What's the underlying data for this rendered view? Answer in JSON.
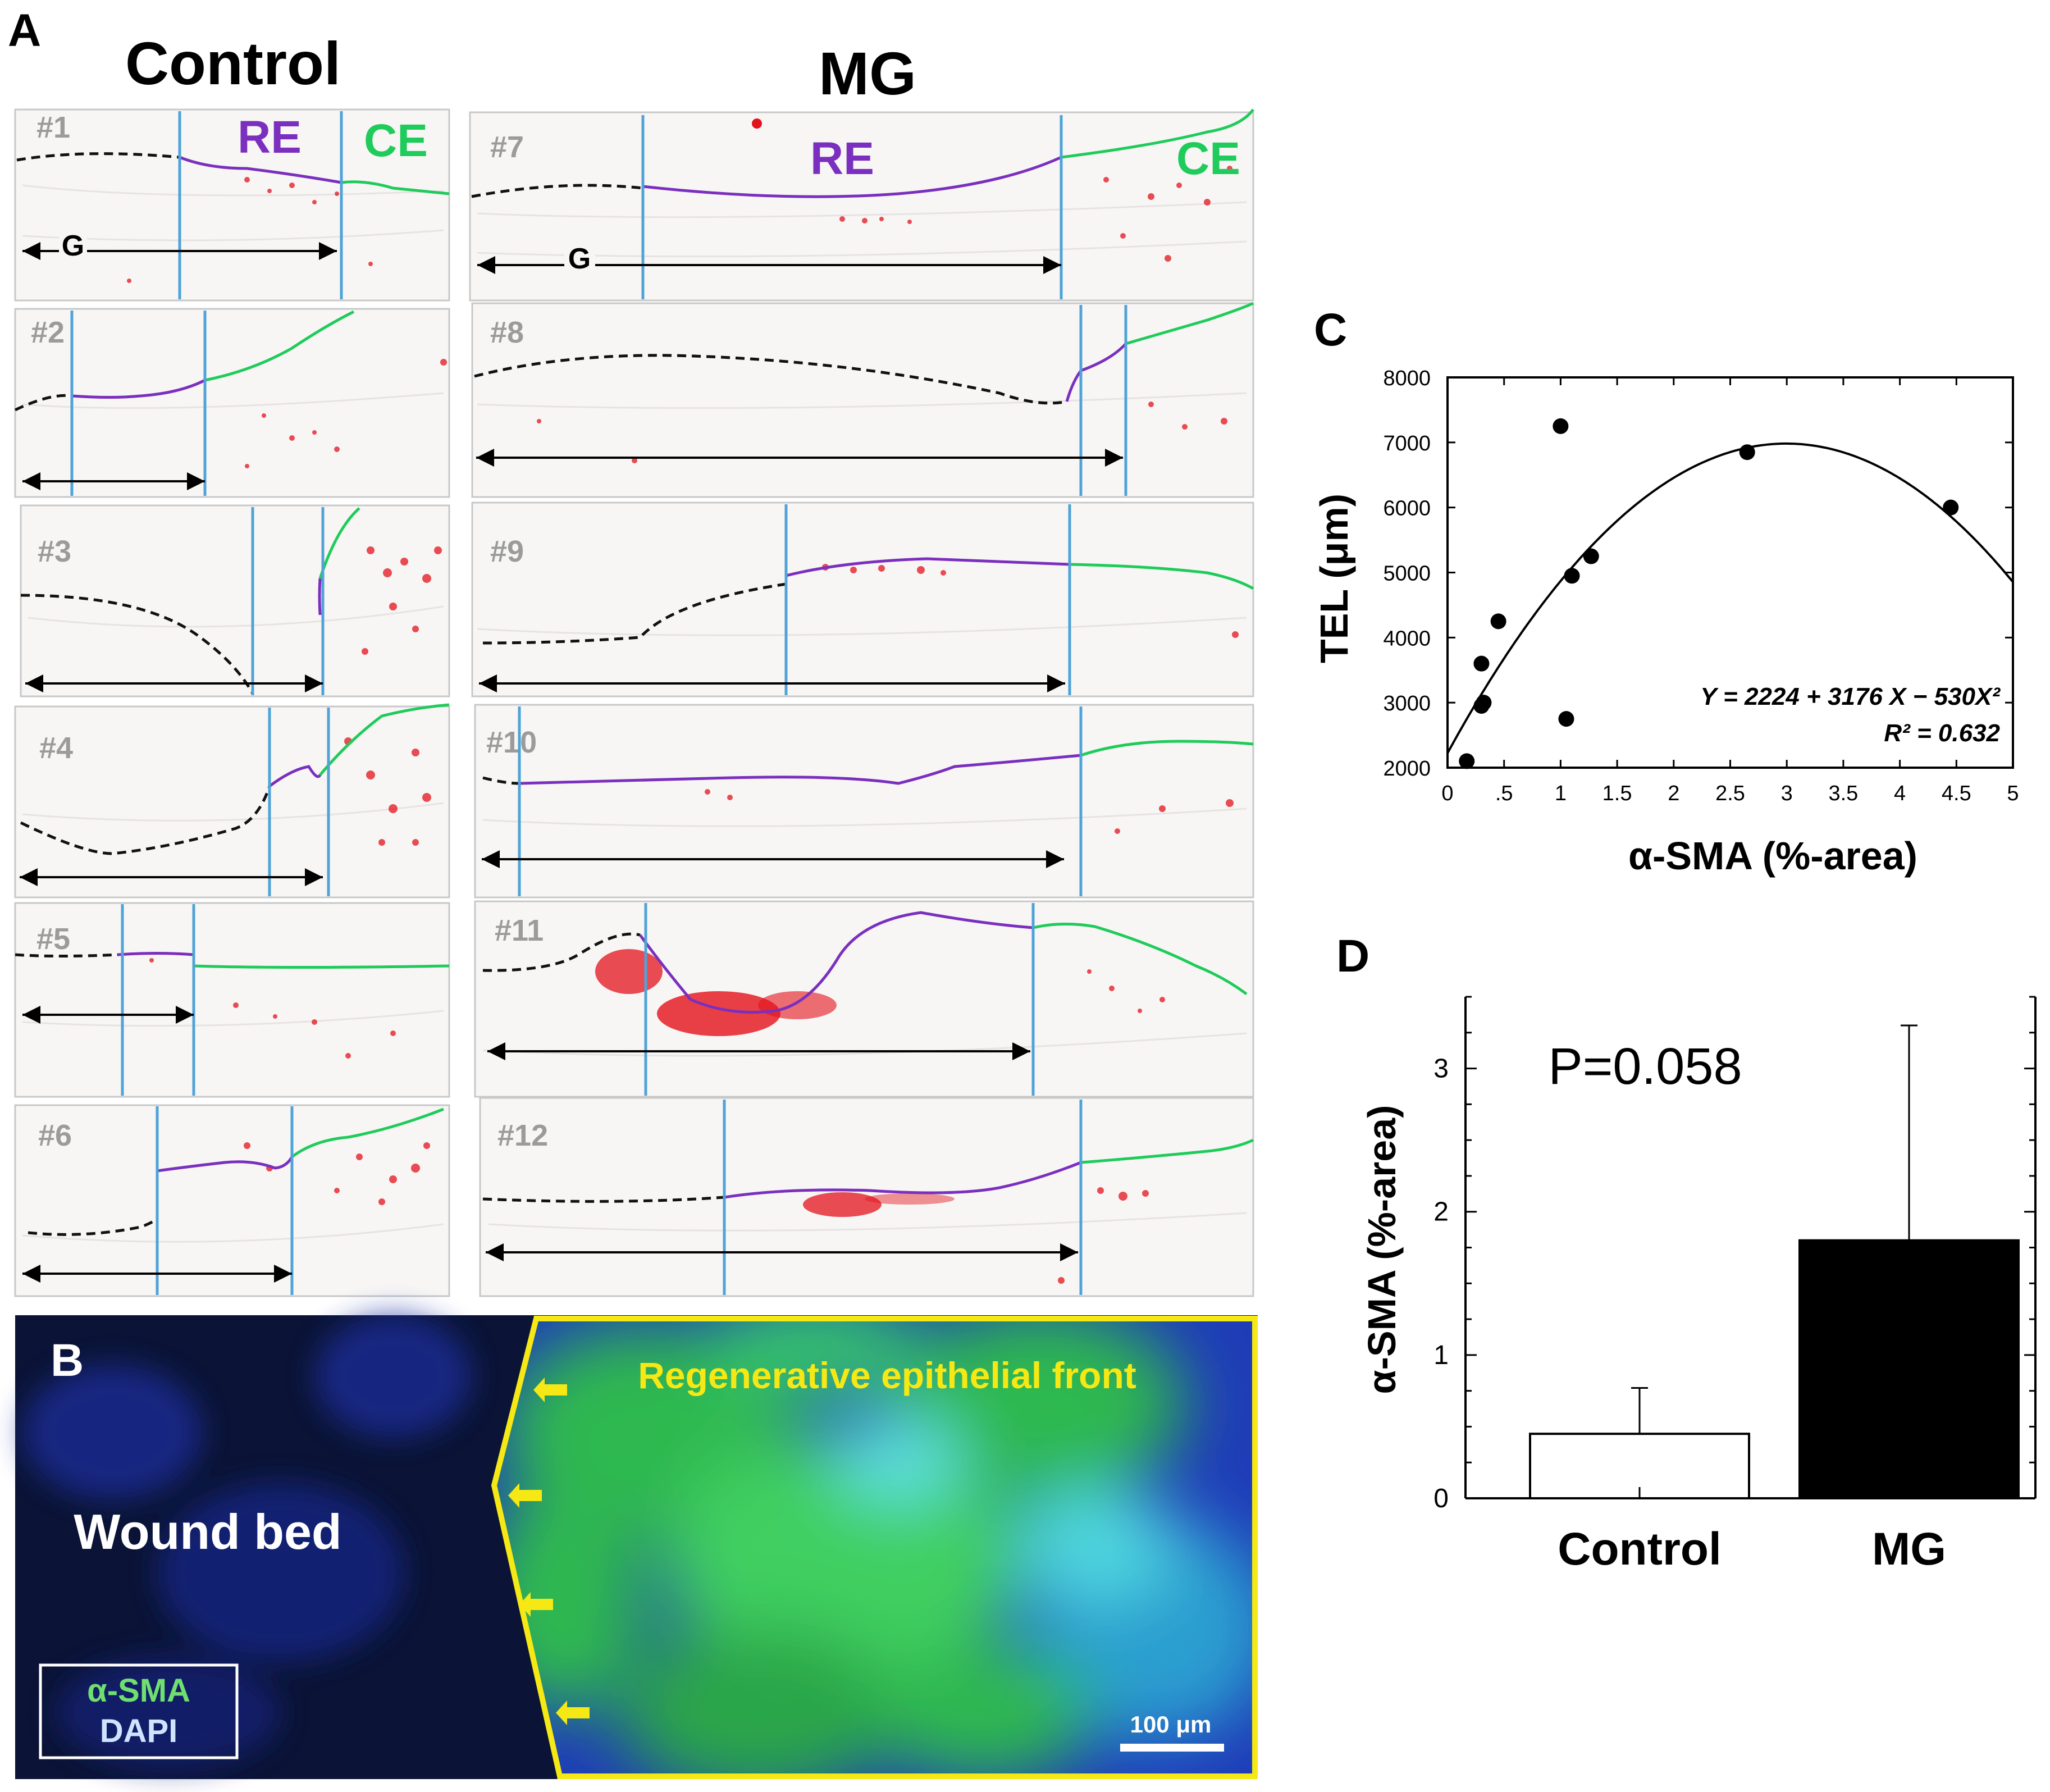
{
  "panel_a": {
    "letter": "A",
    "control_heading": "Control",
    "mg_heading": "MG",
    "re_label": "RE",
    "ce_label": "CE",
    "g_label": "G",
    "sections": [
      "#1",
      "#2",
      "#3",
      "#4",
      "#5",
      "#6",
      "#7",
      "#8",
      "#9",
      "#10",
      "#11",
      "#12"
    ]
  },
  "panel_b": {
    "letter": "B",
    "wound_bed": "Wound bed",
    "front_label": "Regenerative epithelial front",
    "legend_sma": "α-SMA",
    "legend_dapi": "DAPI",
    "scale_bar": "100 μm"
  },
  "colors": {
    "re_line": "#7B2FBE",
    "ce_line": "#1FCB5A",
    "boundary": "#4FA3D8",
    "stain": "#E3121B",
    "front_outline": "#F5E814",
    "fluor_blue": "#1f3cb8",
    "fluor_green": "#2fb84f"
  },
  "chart_data": [
    {
      "panel": "C",
      "type": "scatter",
      "xlabel": "α-SMA (%-area)",
      "ylabel": "TEL (μm)",
      "xlim": [
        0,
        5
      ],
      "ylim": [
        2000,
        8000
      ],
      "x_ticks": [
        "0",
        ".5",
        "1",
        "1.5",
        "2",
        "2.5",
        "3",
        "3.5",
        "4",
        "4.5",
        "5"
      ],
      "y_ticks": [
        "2000",
        "3000",
        "4000",
        "5000",
        "6000",
        "7000",
        "8000"
      ],
      "points": [
        {
          "x": 0.17,
          "y": 2100
        },
        {
          "x": 0.3,
          "y": 2950
        },
        {
          "x": 0.32,
          "y": 3000
        },
        {
          "x": 0.3,
          "y": 3600
        },
        {
          "x": 0.45,
          "y": 4250
        },
        {
          "x": 1.0,
          "y": 7250
        },
        {
          "x": 1.05,
          "y": 2750
        },
        {
          "x": 1.1,
          "y": 4950
        },
        {
          "x": 1.27,
          "y": 5250
        },
        {
          "x": 2.65,
          "y": 6850
        },
        {
          "x": 4.45,
          "y": 6000
        }
      ],
      "fit": {
        "intercept": 2224,
        "b1": 3176,
        "b2": -530
      },
      "equation": "Y = 2224 + 3176 X − 530X²",
      "r2": "R² = 0.632"
    },
    {
      "panel": "D",
      "type": "bar",
      "categories": [
        "Control",
        "MG"
      ],
      "values": [
        0.45,
        1.8
      ],
      "errors": [
        0.32,
        1.5
      ],
      "bar_colors": [
        "#ffffff",
        "#000000"
      ],
      "ylabel": "α-SMA (%-area)",
      "ylim": [
        0,
        3.5
      ],
      "y_ticks": [
        "0",
        "1",
        "2",
        "3"
      ],
      "annotation": "P=0.058"
    }
  ]
}
